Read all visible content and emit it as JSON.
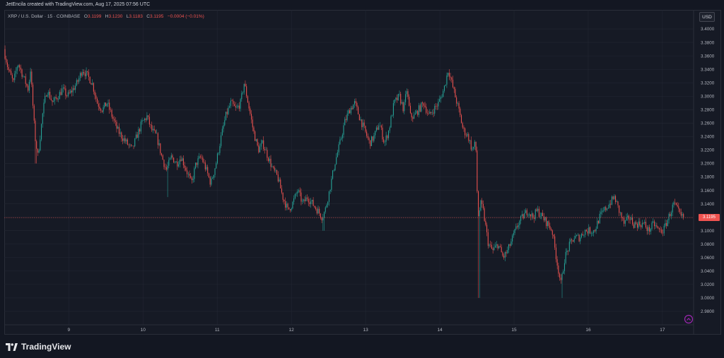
{
  "credit": "JetEncila created with TradingView.com, Aug 17, 2025 07:56 UTC",
  "legend": {
    "symbol": "XRP / U.S. Dollar · 15 · COINBASE",
    "o_label": "O",
    "o": "3.1199",
    "h_label": "H",
    "h": "3.1230",
    "l_label": "L",
    "l": "3.1183",
    "c_label": "C",
    "c": "3.1195",
    "change": "−0.0004 (−0.01%)"
  },
  "currency_button": "USD",
  "brand": "TradingView",
  "icons": {
    "logo": "tradingview-logo-icon",
    "goto": "scroll-to-realtime-icon"
  },
  "colors": {
    "up": "#26a69a",
    "down": "#ef5350",
    "background": "#161a25",
    "grid": "#232733"
  },
  "chart_data": {
    "type": "candlestick",
    "symbol": "XRP / U.S. Dollar",
    "interval": "15",
    "exchange": "COINBASE",
    "last_price": 3.1195,
    "last_price_label": "3.1195",
    "ylim": [
      2.96,
      3.42
    ],
    "y_ticks": [
      "3.4000",
      "3.3800",
      "3.3600",
      "3.3400",
      "3.3200",
      "3.3000",
      "3.2800",
      "3.2600",
      "3.2400",
      "3.2200",
      "3.2000",
      "3.1800",
      "3.1600",
      "3.1400",
      "3.1200",
      "3.1000",
      "3.0800",
      "3.0600",
      "3.0400",
      "3.0200",
      "3.0000",
      "2.9800"
    ],
    "x_ticks": [
      {
        "label": "9",
        "day": 9
      },
      {
        "label": "10",
        "day": 10
      },
      {
        "label": "11",
        "day": 11
      },
      {
        "label": "12",
        "day": 12
      },
      {
        "label": "13",
        "day": 13
      },
      {
        "label": "14",
        "day": 14
      },
      {
        "label": "15",
        "day": 15
      },
      {
        "label": "16",
        "day": 16
      },
      {
        "label": "17",
        "day": 17
      }
    ],
    "x_range_days": [
      8.13,
      17.42
    ],
    "price_path": [
      [
        8.14,
        3.37
      ],
      [
        8.2,
        3.34
      ],
      [
        8.27,
        3.32
      ],
      [
        8.33,
        3.35
      ],
      [
        8.4,
        3.33
      ],
      [
        8.47,
        3.31
      ],
      [
        8.5,
        3.34
      ],
      [
        8.56,
        3.24
      ],
      [
        8.6,
        3.21
      ],
      [
        8.67,
        3.28
      ],
      [
        8.72,
        3.31
      ],
      [
        8.8,
        3.29
      ],
      [
        8.87,
        3.3
      ],
      [
        8.93,
        3.31
      ],
      [
        9.0,
        3.3
      ],
      [
        9.07,
        3.31
      ],
      [
        9.13,
        3.32
      ],
      [
        9.2,
        3.34
      ],
      [
        9.27,
        3.33
      ],
      [
        9.33,
        3.32
      ],
      [
        9.4,
        3.29
      ],
      [
        9.47,
        3.28
      ],
      [
        9.53,
        3.29
      ],
      [
        9.6,
        3.27
      ],
      [
        9.67,
        3.25
      ],
      [
        9.73,
        3.24
      ],
      [
        9.8,
        3.23
      ],
      [
        9.87,
        3.22
      ],
      [
        9.93,
        3.24
      ],
      [
        10.0,
        3.26
      ],
      [
        10.07,
        3.27
      ],
      [
        10.13,
        3.25
      ],
      [
        10.2,
        3.24
      ],
      [
        10.27,
        3.21
      ],
      [
        10.33,
        3.19
      ],
      [
        10.4,
        3.21
      ],
      [
        10.47,
        3.2
      ],
      [
        10.53,
        3.21
      ],
      [
        10.6,
        3.19
      ],
      [
        10.67,
        3.17
      ],
      [
        10.73,
        3.2
      ],
      [
        10.8,
        3.21
      ],
      [
        10.87,
        3.19
      ],
      [
        10.93,
        3.17
      ],
      [
        11.0,
        3.2
      ],
      [
        11.07,
        3.24
      ],
      [
        11.13,
        3.27
      ],
      [
        11.2,
        3.29
      ],
      [
        11.27,
        3.28
      ],
      [
        11.33,
        3.29
      ],
      [
        11.38,
        3.32
      ],
      [
        11.45,
        3.28
      ],
      [
        11.5,
        3.25
      ],
      [
        11.57,
        3.22
      ],
      [
        11.63,
        3.23
      ],
      [
        11.7,
        3.21
      ],
      [
        11.77,
        3.19
      ],
      [
        11.83,
        3.18
      ],
      [
        11.9,
        3.15
      ],
      [
        11.97,
        3.13
      ],
      [
        12.03,
        3.14
      ],
      [
        12.1,
        3.16
      ],
      [
        12.17,
        3.14
      ],
      [
        12.23,
        3.15
      ],
      [
        12.3,
        3.14
      ],
      [
        12.37,
        3.13
      ],
      [
        12.43,
        3.12
      ],
      [
        12.47,
        3.13
      ],
      [
        12.53,
        3.16
      ],
      [
        12.6,
        3.2
      ],
      [
        12.67,
        3.23
      ],
      [
        12.73,
        3.26
      ],
      [
        12.8,
        3.28
      ],
      [
        12.87,
        3.29
      ],
      [
        12.93,
        3.27
      ],
      [
        13.0,
        3.25
      ],
      [
        13.07,
        3.23
      ],
      [
        13.13,
        3.24
      ],
      [
        13.2,
        3.26
      ],
      [
        13.27,
        3.23
      ],
      [
        13.33,
        3.25
      ],
      [
        13.4,
        3.29
      ],
      [
        13.47,
        3.3
      ],
      [
        13.53,
        3.28
      ],
      [
        13.57,
        3.31
      ],
      [
        13.62,
        3.27
      ],
      [
        13.67,
        3.27
      ],
      [
        13.73,
        3.28
      ],
      [
        13.8,
        3.29
      ],
      [
        13.87,
        3.27
      ],
      [
        13.93,
        3.28
      ],
      [
        14.0,
        3.29
      ],
      [
        14.07,
        3.31
      ],
      [
        14.13,
        3.34
      ],
      [
        14.2,
        3.31
      ],
      [
        14.27,
        3.28
      ],
      [
        14.33,
        3.25
      ],
      [
        14.4,
        3.24
      ],
      [
        14.45,
        3.22
      ],
      [
        14.5,
        3.23
      ],
      [
        14.53,
        3.12
      ],
      [
        14.57,
        3.14
      ],
      [
        14.6,
        3.13
      ],
      [
        14.67,
        3.08
      ],
      [
        14.73,
        3.07
      ],
      [
        14.8,
        3.08
      ],
      [
        14.87,
        3.06
      ],
      [
        14.93,
        3.07
      ],
      [
        15.0,
        3.09
      ],
      [
        15.07,
        3.11
      ],
      [
        15.13,
        3.12
      ],
      [
        15.2,
        3.13
      ],
      [
        15.27,
        3.12
      ],
      [
        15.33,
        3.13
      ],
      [
        15.4,
        3.12
      ],
      [
        15.47,
        3.11
      ],
      [
        15.53,
        3.1
      ],
      [
        15.6,
        3.05
      ],
      [
        15.65,
        3.02
      ],
      [
        15.7,
        3.06
      ],
      [
        15.77,
        3.08
      ],
      [
        15.83,
        3.09
      ],
      [
        15.9,
        3.09
      ],
      [
        15.97,
        3.1
      ],
      [
        16.03,
        3.1
      ],
      [
        16.1,
        3.1
      ],
      [
        16.17,
        3.12
      ],
      [
        16.23,
        3.13
      ],
      [
        16.3,
        3.14
      ],
      [
        16.37,
        3.15
      ],
      [
        16.43,
        3.13
      ],
      [
        16.5,
        3.11
      ],
      [
        16.57,
        3.12
      ],
      [
        16.63,
        3.11
      ],
      [
        16.7,
        3.11
      ],
      [
        16.77,
        3.11
      ],
      [
        16.83,
        3.1
      ],
      [
        16.9,
        3.11
      ],
      [
        16.97,
        3.1
      ],
      [
        17.03,
        3.1
      ],
      [
        17.1,
        3.12
      ],
      [
        17.17,
        3.14
      ],
      [
        17.22,
        3.13
      ],
      [
        17.27,
        3.12
      ],
      [
        17.3,
        3.12
      ]
    ],
    "spikes": [
      {
        "day": 8.56,
        "low": 3.2
      },
      {
        "day": 10.33,
        "low": 3.15
      },
      {
        "day": 12.43,
        "low": 3.1
      },
      {
        "day": 14.53,
        "low": 3.0
      },
      {
        "day": 15.65,
        "low": 3.0
      }
    ],
    "candle_count": 560,
    "seed": 7
  }
}
